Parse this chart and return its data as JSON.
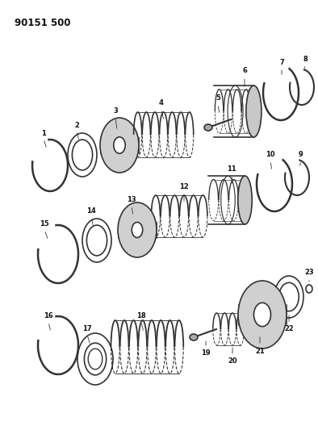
{
  "title": "90151 500",
  "bg_color": "#ffffff",
  "line_color": "#333333",
  "fig_width": 3.94,
  "fig_height": 5.33,
  "dpi": 100
}
